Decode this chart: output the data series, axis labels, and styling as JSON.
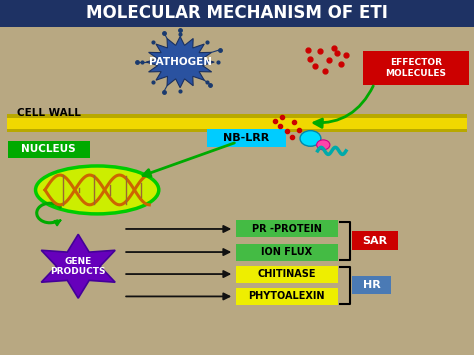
{
  "title": "MOLECULAR MECHANISM OF ETI",
  "title_bg": "#1e3264",
  "title_color": "#ffffff",
  "bg_color": "#b8a882",
  "cell_wall_color_outer": "#b8a800",
  "cell_wall_color_inner": "#f0d800",
  "cell_wall_label": "CELL WALL",
  "pathogen_color": "#2a52a0",
  "pathogen_label": "PATHOGEN",
  "effector_color": "#cc0000",
  "effector_label": "EFFECTOR\nMOLECULES",
  "nblrr_color": "#00ccff",
  "nblrr_label": "NB-LRR",
  "nucleus_color": "#00aa00",
  "nucleus_label": "NUCLEUS",
  "dna_ellipse_color": "#ccee00",
  "dna_ellipse_edge": "#00cc00",
  "gene_products_color": "#6600bb",
  "gene_products_label": "GENE\nPRODUCTS",
  "pr_protein_color": "#44bb44",
  "pr_protein_label": "PR -PROTEIN",
  "ion_flux_color": "#44bb44",
  "ion_flux_label": "ION FLUX",
  "chitinase_color": "#eeee00",
  "chitinase_label": "CHITINASE",
  "phytoalexin_color": "#eeee00",
  "phytoalexin_label": "PHYTOALEXIN",
  "sar_color": "#cc0000",
  "sar_label": "SAR",
  "hr_color": "#4a7ab5",
  "hr_label": "HR",
  "red_dots_color": "#cc0000",
  "arrow_green": "#00aa00",
  "arrow_black": "#111111",
  "spike_color": "#1a3a6e"
}
